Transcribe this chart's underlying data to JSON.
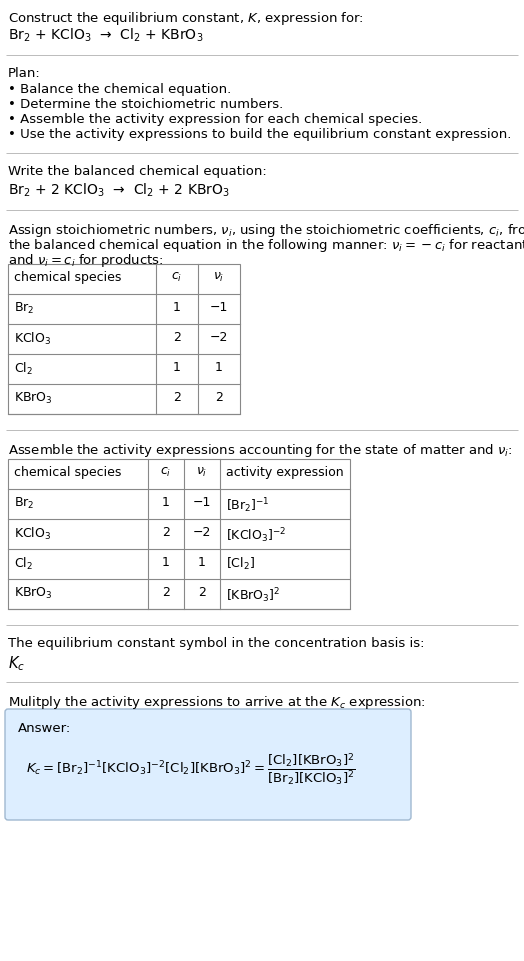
{
  "title_line1": "Construct the equilibrium constant, $K$, expression for:",
  "reaction_unbalanced": "Br$_2$ + KClO$_3$  →  Cl$_2$ + KBrO$_3$",
  "plan_header": "Plan:",
  "plan_items": [
    "• Balance the chemical equation.",
    "• Determine the stoichiometric numbers.",
    "• Assemble the activity expression for each chemical species.",
    "• Use the activity expressions to build the equilibrium constant expression."
  ],
  "balanced_header": "Write the balanced chemical equation:",
  "reaction_balanced": "Br$_2$ + 2 KClO$_3$  →  Cl$_2$ + 2 KBrO$_3$",
  "stoich_header_line1": "Assign stoichiometric numbers, $\\nu_i$, using the stoichiometric coefficients, $c_i$, from",
  "stoich_header_line2": "the balanced chemical equation in the following manner: $\\nu_i = -c_i$ for reactants",
  "stoich_header_line3": "and $\\nu_i = c_i$ for products:",
  "table1_headers": [
    "chemical species",
    "$c_i$",
    "$\\nu_i$"
  ],
  "table1_data": [
    [
      "Br$_2$",
      "1",
      "−1"
    ],
    [
      "KClO$_3$",
      "2",
      "−2"
    ],
    [
      "Cl$_2$",
      "1",
      "1"
    ],
    [
      "KBrO$_3$",
      "2",
      "2"
    ]
  ],
  "assemble_header": "Assemble the activity expressions accounting for the state of matter and $\\nu_i$:",
  "table2_headers": [
    "chemical species",
    "$c_i$",
    "$\\nu_i$",
    "activity expression"
  ],
  "table2_data": [
    [
      "Br$_2$",
      "1",
      "−1",
      "[Br$_2$]$^{-1}$"
    ],
    [
      "KClO$_3$",
      "2",
      "−2",
      "[KClO$_3$]$^{-2}$"
    ],
    [
      "Cl$_2$",
      "1",
      "1",
      "[Cl$_2$]"
    ],
    [
      "KBrO$_3$",
      "2",
      "2",
      "[KBrO$_3$]$^2$"
    ]
  ],
  "kc_text": "The equilibrium constant symbol in the concentration basis is:",
  "kc_symbol": "$K_c$",
  "multiply_text": "Mulitply the activity expressions to arrive at the $K_c$ expression:",
  "answer_label": "Answer:",
  "bg_color": "#ffffff",
  "answer_bg": "#ddeeff",
  "answer_border": "#a0b8d0",
  "text_color": "#000000",
  "font_size": 9.5
}
